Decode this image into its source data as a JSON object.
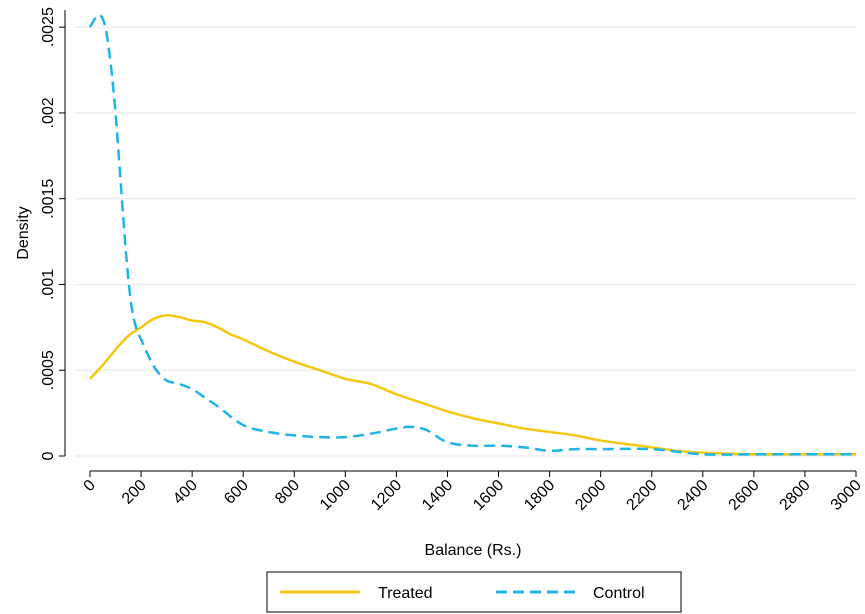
{
  "chart_data": {
    "type": "line",
    "title": "",
    "xlabel": "Balance (Rs.)",
    "ylabel": "Density",
    "xlim": [
      0,
      3000
    ],
    "ylim": [
      0,
      0.0026
    ],
    "grid": true,
    "legend_position": "bottom",
    "x_ticks": [
      0,
      200,
      400,
      600,
      800,
      1000,
      1200,
      1400,
      1600,
      1800,
      2000,
      2200,
      2400,
      2600,
      2800,
      3000
    ],
    "x_tick_labels": [
      "0",
      "200",
      "400",
      "600",
      "800",
      "1000",
      "1200",
      "1400",
      "1600",
      "1800",
      "2000",
      "2200",
      "2400",
      "2600",
      "2800",
      "3000"
    ],
    "y_ticks": [
      0,
      0.0005,
      0.001,
      0.0015,
      0.002,
      0.0025
    ],
    "y_tick_labels": [
      "0",
      ".0005",
      ".001",
      ".0015",
      ".002",
      ".0025"
    ],
    "series": [
      {
        "name": "Treated",
        "color": "#f5c710",
        "style": "solid",
        "x": [
          0,
          50,
          100,
          150,
          200,
          250,
          300,
          350,
          400,
          450,
          500,
          550,
          600,
          700,
          800,
          900,
          1000,
          1100,
          1200,
          1300,
          1400,
          1500,
          1600,
          1700,
          1800,
          1900,
          2000,
          2100,
          2200,
          2300,
          2400,
          2600,
          2800,
          3000
        ],
        "y": [
          0.00045,
          0.00053,
          0.00062,
          0.0007,
          0.00075,
          0.0008,
          0.00082,
          0.00081,
          0.00079,
          0.00078,
          0.00075,
          0.00071,
          0.00068,
          0.00061,
          0.00055,
          0.0005,
          0.00045,
          0.00042,
          0.00036,
          0.00031,
          0.00026,
          0.00022,
          0.00019,
          0.00016,
          0.00014,
          0.00012,
          9e-05,
          7e-05,
          5e-05,
          3e-05,
          2e-05,
          1e-05,
          1e-05,
          1e-05
        ]
      },
      {
        "name": "Control",
        "color": "#1fb4e6",
        "style": "dashed",
        "x": [
          0,
          20,
          40,
          60,
          80,
          100,
          120,
          140,
          160,
          180,
          200,
          230,
          260,
          300,
          350,
          400,
          450,
          500,
          600,
          700,
          800,
          900,
          1000,
          1100,
          1200,
          1260,
          1320,
          1400,
          1500,
          1600,
          1700,
          1800,
          1900,
          2000,
          2200,
          2400,
          2600,
          2800,
          3000
        ],
        "y": [
          0.0025,
          0.00255,
          0.00257,
          0.0025,
          0.0023,
          0.002,
          0.0016,
          0.0012,
          0.0009,
          0.00075,
          0.00068,
          0.00058,
          0.0005,
          0.00044,
          0.00042,
          0.00039,
          0.00034,
          0.00029,
          0.00018,
          0.00014,
          0.00012,
          0.00011,
          0.00011,
          0.00013,
          0.00016,
          0.00017,
          0.00015,
          8e-05,
          6e-05,
          6e-05,
          5e-05,
          3e-05,
          4e-05,
          4e-05,
          4e-05,
          1e-05,
          1e-05,
          1e-05,
          1e-05
        ]
      }
    ]
  }
}
